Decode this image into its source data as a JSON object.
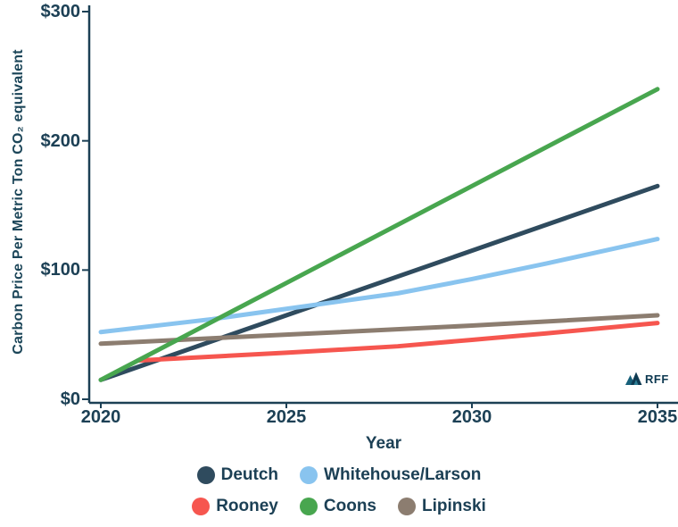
{
  "background": "#ffffff",
  "text_color": "#1C4055",
  "axis_color": "#1C4055",
  "y_axis": {
    "title": "Carbon Price Per Metric Ton CO₂ equivalent",
    "ticks": [
      {
        "label": "$0",
        "value": 0
      },
      {
        "label": "$100",
        "value": 100
      },
      {
        "label": "$200",
        "value": 200
      },
      {
        "label": "$300",
        "value": 300
      }
    ]
  },
  "x_axis": {
    "title": "Year",
    "ticks": [
      {
        "label": "2020",
        "value": 2020
      },
      {
        "label": "2025",
        "value": 2025
      },
      {
        "label": "2030",
        "value": 2030
      },
      {
        "label": "2035",
        "value": 2035
      }
    ]
  },
  "chart_data": {
    "type": "line",
    "title": "",
    "xlabel": "Year",
    "ylabel": "Carbon Price Per Metric Ton CO₂ equivalent",
    "xlim": [
      2020,
      2035
    ],
    "ylim": [
      0,
      300
    ],
    "grid": false,
    "legend_position": "bottom",
    "series": [
      {
        "name": "Deutch",
        "color": "#2F4B5E",
        "points": [
          [
            2020,
            15
          ],
          [
            2025,
            65
          ],
          [
            2030,
            115
          ],
          [
            2035,
            165
          ]
        ]
      },
      {
        "name": "Whitehouse/Larson",
        "color": "#89C4EF",
        "points": [
          [
            2020,
            52
          ],
          [
            2023,
            62
          ],
          [
            2025,
            70
          ],
          [
            2028,
            82
          ],
          [
            2030,
            93
          ],
          [
            2032,
            105
          ],
          [
            2035,
            124
          ]
        ]
      },
      {
        "name": "Rooney",
        "color": "#F6564F",
        "points": [
          [
            2021,
            30
          ],
          [
            2025,
            36
          ],
          [
            2028,
            41
          ],
          [
            2030,
            46
          ],
          [
            2032,
            51
          ],
          [
            2035,
            59
          ]
        ]
      },
      {
        "name": "Coons",
        "color": "#48A64F",
        "points": [
          [
            2020,
            15
          ],
          [
            2025,
            90
          ],
          [
            2030,
            165
          ],
          [
            2035,
            240
          ]
        ]
      },
      {
        "name": "Lipinski",
        "color": "#8C7D70",
        "points": [
          [
            2020,
            43
          ],
          [
            2025,
            50
          ],
          [
            2030,
            57
          ],
          [
            2035,
            65
          ]
        ]
      }
    ]
  },
  "legend": {
    "rows": [
      [
        "Deutch",
        "Whitehouse/Larson"
      ],
      [
        "Rooney",
        "Coons",
        "Lipinski"
      ]
    ]
  },
  "watermark": {
    "text": "RFF"
  }
}
